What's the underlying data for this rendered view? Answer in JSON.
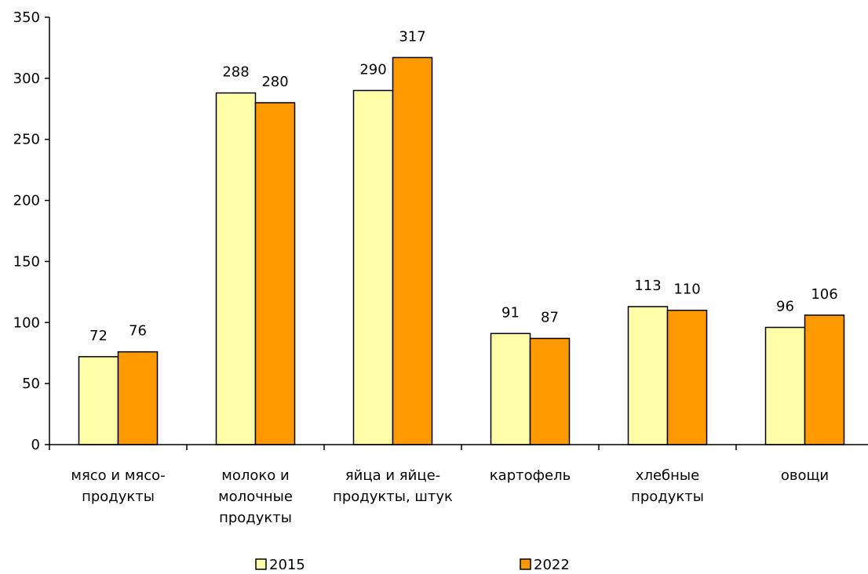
{
  "chart_data": {
    "type": "bar",
    "categories": [
      [
        "мясо и мясо-",
        "продукты"
      ],
      [
        "молоко и",
        "молочные",
        "продукты"
      ],
      [
        "яйца и яйце-",
        "продукты, штук"
      ],
      [
        "картофель"
      ],
      [
        "хлебные",
        "продукты"
      ],
      [
        "овощи"
      ]
    ],
    "series": [
      {
        "name": "2015",
        "values": [
          72,
          288,
          290,
          91,
          113,
          96
        ],
        "color": "#FFFFAA"
      },
      {
        "name": "2022",
        "values": [
          76,
          280,
          317,
          87,
          110,
          106
        ],
        "color": "#FF9900"
      }
    ],
    "ylim": [
      0,
      350
    ],
    "yticks": [
      0,
      50,
      100,
      150,
      200,
      250,
      300,
      350
    ],
    "grid": false,
    "legend": "bottom",
    "data_labels": true
  }
}
